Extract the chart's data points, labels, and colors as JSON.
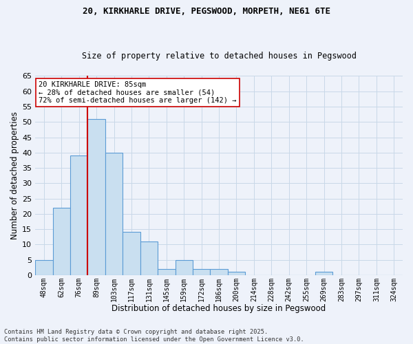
{
  "title_line1": "20, KIRKHARLE DRIVE, PEGSWOOD, MORPETH, NE61 6TE",
  "title_line2": "Size of property relative to detached houses in Pegswood",
  "xlabel": "Distribution of detached houses by size in Pegswood",
  "ylabel": "Number of detached properties",
  "categories": [
    "48sqm",
    "62sqm",
    "76sqm",
    "89sqm",
    "103sqm",
    "117sqm",
    "131sqm",
    "145sqm",
    "159sqm",
    "172sqm",
    "186sqm",
    "200sqm",
    "214sqm",
    "228sqm",
    "242sqm",
    "255sqm",
    "269sqm",
    "283sqm",
    "297sqm",
    "311sqm",
    "324sqm"
  ],
  "values": [
    5,
    22,
    39,
    51,
    40,
    14,
    11,
    2,
    5,
    2,
    2,
    1,
    0,
    0,
    0,
    0,
    1,
    0,
    0,
    0,
    0
  ],
  "bar_color": "#c9dff0",
  "bar_edge_color": "#5b9bd5",
  "grid_color": "#c8d8e8",
  "background_color": "#eef2fa",
  "vline_color": "#cc0000",
  "annotation_text": "20 KIRKHARLE DRIVE: 85sqm\n← 28% of detached houses are smaller (54)\n72% of semi-detached houses are larger (142) →",
  "annotation_box_color": "#ffffff",
  "annotation_box_edge": "#cc0000",
  "footnote": "Contains HM Land Registry data © Crown copyright and database right 2025.\nContains public sector information licensed under the Open Government Licence v3.0.",
  "ylim": [
    0,
    65
  ],
  "yticks": [
    0,
    5,
    10,
    15,
    20,
    25,
    30,
    35,
    40,
    45,
    50,
    55,
    60,
    65
  ]
}
